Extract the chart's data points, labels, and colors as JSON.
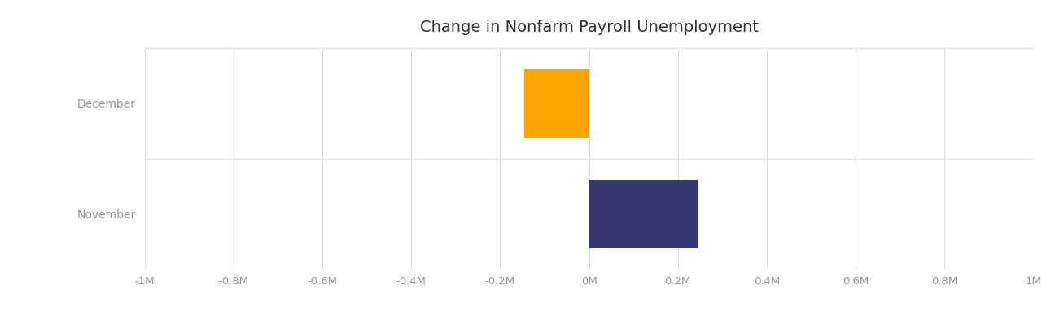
{
  "title": "Change in Nonfarm Payroll Unemployment",
  "categories": [
    "November",
    "December"
  ],
  "values": [
    245000,
    -145000
  ],
  "bar_colors": [
    "#35386e",
    "#ffa500"
  ],
  "xlim": [
    -1000000,
    1000000
  ],
  "xtick_values": [
    -1000000,
    -800000,
    -600000,
    -400000,
    -200000,
    0,
    200000,
    400000,
    600000,
    800000,
    1000000
  ],
  "xtick_labels": [
    "-1M",
    "-0.8M",
    "-0.6M",
    "-0.4M",
    "-0.2M",
    "0M",
    "0.2M",
    "0.4M",
    "0.6M",
    "0.8M",
    "1M"
  ],
  "background_color": "#ffffff",
  "plot_area_color": "#ffffff",
  "grid_color": "#dddddd",
  "title_fontsize": 14,
  "tick_label_color": "#999999",
  "ylabel_color": "#999999",
  "bar_height": 0.62
}
